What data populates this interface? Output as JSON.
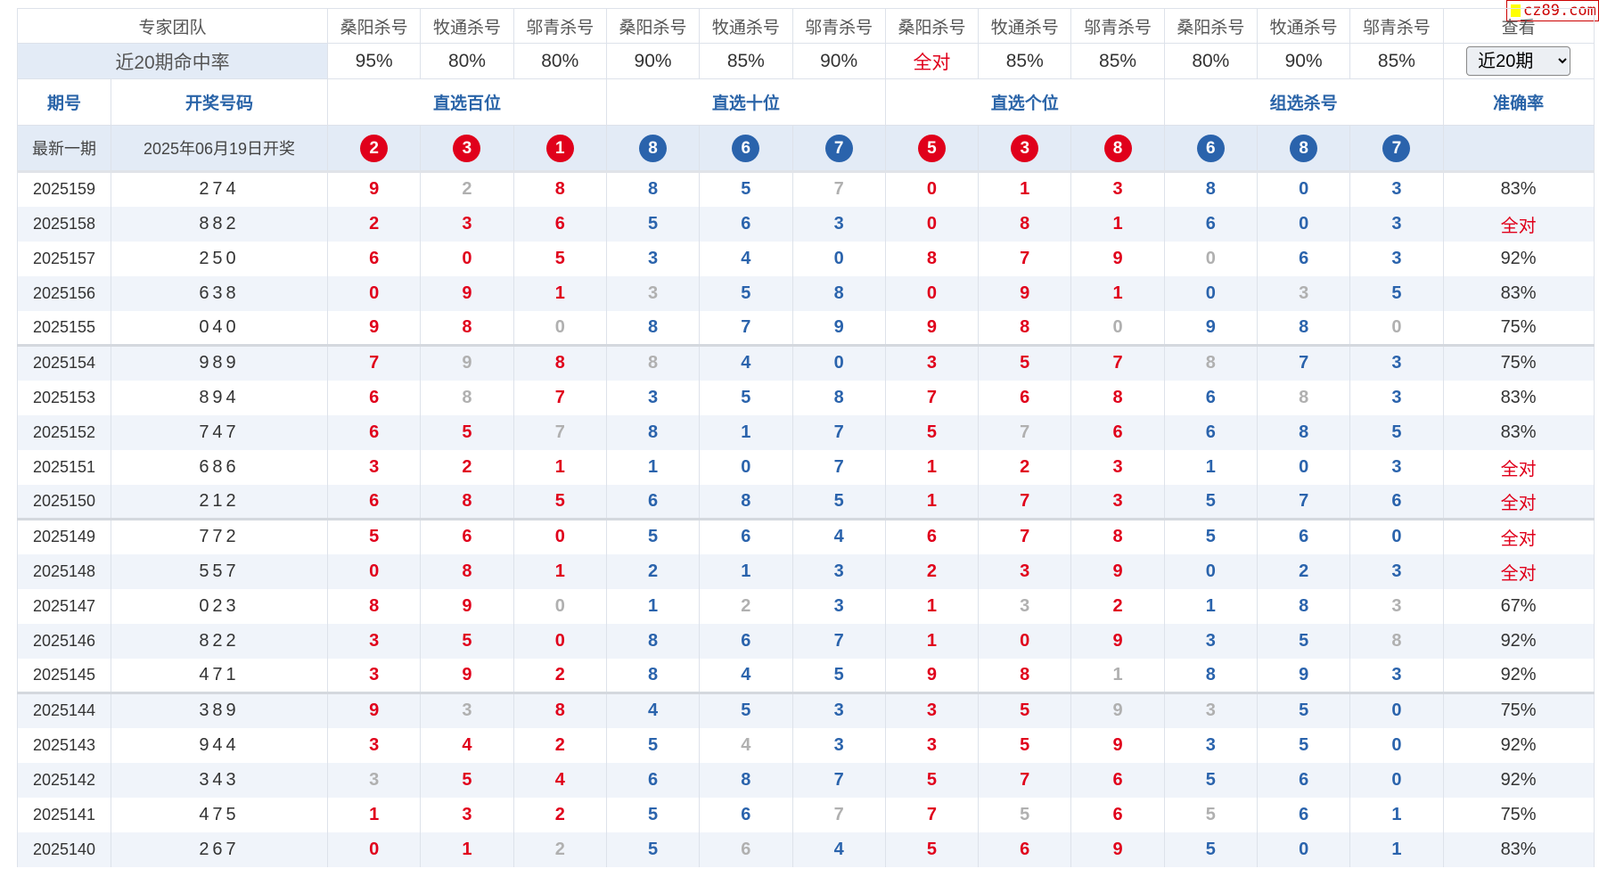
{
  "watermark": "cz89.com",
  "header": {
    "team_label": "专家团队",
    "experts": [
      "桑阳杀号",
      "牧通杀号",
      "邬青杀号",
      "桑阳杀号",
      "牧通杀号",
      "邬青杀号",
      "桑阳杀号",
      "牧通杀号",
      "邬青杀号",
      "桑阳杀号",
      "牧通杀号",
      "邬青杀号"
    ],
    "view_label": "查看",
    "rate_label": "近20期命中率",
    "rates": [
      "95%",
      "80%",
      "80%",
      "90%",
      "85%",
      "90%",
      "全对",
      "85%",
      "85%",
      "80%",
      "90%",
      "85%"
    ],
    "period_select": "近20期",
    "col_issue": "期号",
    "col_draw": "开奖号码",
    "groups": [
      "直选百位",
      "直选十位",
      "直选个位",
      "组选杀号"
    ],
    "col_accuracy": "准确率"
  },
  "latest": {
    "label": "最新一期",
    "date": "2025年06月19日开奖",
    "balls": [
      2,
      3,
      1,
      8,
      6,
      7,
      5,
      3,
      8,
      6,
      8,
      7
    ]
  },
  "colors": {
    "red": "#e0001b",
    "blue": "#2a63ac",
    "miss": "#b0b0b0"
  },
  "rows": [
    {
      "issue": "2025159",
      "draw": "274",
      "kills": [
        9,
        2,
        8,
        8,
        5,
        7,
        0,
        1,
        3,
        8,
        0,
        3
      ],
      "miss": [
        1,
        5
      ],
      "acc": "83%"
    },
    {
      "issue": "2025158",
      "draw": "882",
      "kills": [
        2,
        3,
        6,
        5,
        6,
        3,
        0,
        8,
        1,
        6,
        0,
        3
      ],
      "miss": [],
      "acc": "全对"
    },
    {
      "issue": "2025157",
      "draw": "250",
      "kills": [
        6,
        0,
        5,
        3,
        4,
        0,
        8,
        7,
        9,
        0,
        6,
        3
      ],
      "miss": [
        9
      ],
      "acc": "92%"
    },
    {
      "issue": "2025156",
      "draw": "638",
      "kills": [
        0,
        9,
        1,
        3,
        5,
        8,
        0,
        9,
        1,
        0,
        3,
        5
      ],
      "miss": [
        3,
        10
      ],
      "acc": "83%"
    },
    {
      "issue": "2025155",
      "draw": "040",
      "kills": [
        9,
        8,
        0,
        8,
        7,
        9,
        9,
        8,
        0,
        9,
        8,
        0
      ],
      "miss": [
        2,
        8,
        11
      ],
      "acc": "75%"
    },
    {
      "issue": "2025154",
      "draw": "989",
      "kills": [
        7,
        9,
        8,
        8,
        4,
        0,
        3,
        5,
        7,
        8,
        7,
        3
      ],
      "miss": [
        1,
        3,
        9
      ],
      "acc": "75%"
    },
    {
      "issue": "2025153",
      "draw": "894",
      "kills": [
        6,
        8,
        7,
        3,
        5,
        8,
        7,
        6,
        8,
        6,
        8,
        3
      ],
      "miss": [
        1,
        10
      ],
      "acc": "83%"
    },
    {
      "issue": "2025152",
      "draw": "747",
      "kills": [
        6,
        5,
        7,
        8,
        1,
        7,
        5,
        7,
        6,
        6,
        8,
        5
      ],
      "miss": [
        2,
        7
      ],
      "acc": "83%"
    },
    {
      "issue": "2025151",
      "draw": "686",
      "kills": [
        3,
        2,
        1,
        1,
        0,
        7,
        1,
        2,
        3,
        1,
        0,
        3
      ],
      "miss": [],
      "acc": "全对"
    },
    {
      "issue": "2025150",
      "draw": "212",
      "kills": [
        6,
        8,
        5,
        6,
        8,
        5,
        1,
        7,
        3,
        5,
        7,
        6
      ],
      "miss": [],
      "acc": "全对"
    },
    {
      "issue": "2025149",
      "draw": "772",
      "kills": [
        5,
        6,
        0,
        5,
        6,
        4,
        6,
        7,
        8,
        5,
        6,
        0
      ],
      "miss": [],
      "acc": "全对"
    },
    {
      "issue": "2025148",
      "draw": "557",
      "kills": [
        0,
        8,
        1,
        2,
        1,
        3,
        2,
        3,
        9,
        0,
        2,
        3
      ],
      "miss": [],
      "acc": "全对"
    },
    {
      "issue": "2025147",
      "draw": "023",
      "kills": [
        8,
        9,
        0,
        1,
        2,
        3,
        1,
        3,
        2,
        1,
        8,
        3
      ],
      "miss": [
        2,
        4,
        7,
        11
      ],
      "acc": "67%"
    },
    {
      "issue": "2025146",
      "draw": "822",
      "kills": [
        3,
        5,
        0,
        8,
        6,
        7,
        1,
        0,
        9,
        3,
        5,
        8
      ],
      "miss": [
        11
      ],
      "acc": "92%"
    },
    {
      "issue": "2025145",
      "draw": "471",
      "kills": [
        3,
        9,
        2,
        8,
        4,
        5,
        9,
        8,
        1,
        8,
        9,
        3
      ],
      "miss": [
        8
      ],
      "acc": "92%"
    },
    {
      "issue": "2025144",
      "draw": "389",
      "kills": [
        9,
        3,
        8,
        4,
        5,
        3,
        3,
        5,
        9,
        3,
        5,
        0
      ],
      "miss": [
        1,
        8,
        9
      ],
      "acc": "75%"
    },
    {
      "issue": "2025143",
      "draw": "944",
      "kills": [
        3,
        4,
        2,
        5,
        4,
        3,
        3,
        5,
        9,
        3,
        5,
        0
      ],
      "miss": [
        4
      ],
      "acc": "92%"
    },
    {
      "issue": "2025142",
      "draw": "343",
      "kills": [
        3,
        5,
        4,
        6,
        8,
        7,
        5,
        7,
        6,
        5,
        6,
        0
      ],
      "miss": [
        0
      ],
      "acc": "92%"
    },
    {
      "issue": "2025141",
      "draw": "475",
      "kills": [
        1,
        3,
        2,
        5,
        6,
        7,
        7,
        5,
        6,
        5,
        6,
        1
      ],
      "miss": [
        5,
        7,
        9
      ],
      "acc": "75%"
    },
    {
      "issue": "2025140",
      "draw": "267",
      "kills": [
        0,
        1,
        2,
        5,
        6,
        4,
        5,
        6,
        9,
        5,
        0,
        1
      ],
      "miss": [
        2,
        4
      ],
      "acc": "83%"
    }
  ]
}
